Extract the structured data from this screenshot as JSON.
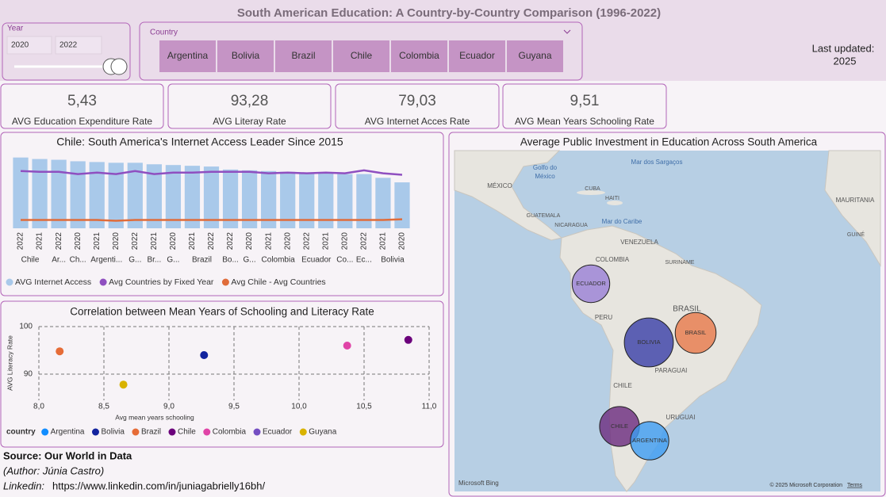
{
  "title": "South American Education: A Country-by-Country Comparison (1996-2022)",
  "year_slicer": {
    "label": "Year",
    "from": "2020",
    "to": "2022"
  },
  "country_slicer": {
    "label": "Country",
    "options": [
      "Argentina",
      "Bolivia",
      "Brazil",
      "Chile",
      "Colombia",
      "Ecuador",
      "Guyana"
    ]
  },
  "last_updated": {
    "label": "Last updated:",
    "value": "2025"
  },
  "kpis": [
    {
      "value": "5,43",
      "label": "AVG Education Expenditure Rate"
    },
    {
      "value": "93,28",
      "label": "AVG Literay Rate"
    },
    {
      "value": "79,03",
      "label": "AVG Internet Acces Rate"
    },
    {
      "value": "9,51",
      "label": "AVG Mean Years Schooling Rate"
    }
  ],
  "footer": {
    "source": "Source: Our World in Data",
    "author": "(Author: Júnia Castro)",
    "linkedin_label": "Linkedin:",
    "linkedin_url": "https://www.linkedin.com/in/juniagabrielly16bh/"
  },
  "map_labels": [
    "Golfo do",
    "México",
    "Mar dos Sargaços",
    "MÉXICO",
    "CUBA",
    "HAITI",
    "Mar do Caribe",
    "GUATEMALA",
    "NICARAGUA",
    "VENEZUELA",
    "COLOMBIA",
    "SURINAME",
    "PERU",
    "BRASIL",
    "PARAGUAI",
    "CHILE",
    "URUGUAI",
    "MAURITANIA",
    "GUINÉ",
    "Microsoft Bing",
    "© 2025 Microsoft Corporation",
    "Terms"
  ],
  "chart_data": [
    {
      "type": "bar_line",
      "title": "Chile: South America's Internet Access Leader Since 2015",
      "categories": [
        "2022",
        "2021",
        "2022",
        "2020",
        "2021",
        "2020",
        "2022",
        "2021",
        "2020",
        "2021",
        "2022",
        "2022",
        "2020",
        "2021",
        "2020",
        "2022",
        "2021",
        "2020",
        "2022",
        "2021",
        "2020"
      ],
      "category_groups": [
        "Chile",
        null,
        "Ar...",
        "Ch...",
        "Argenti...",
        null,
        "G...",
        "Br...",
        "G...",
        "Brazil",
        null,
        "Bo...",
        "G...",
        "Colombia",
        null,
        "Ecuador",
        null,
        "Co...",
        "Ec...",
        "Bolivia",
        null
      ],
      "ylim": [
        0,
        100
      ],
      "series": [
        {
          "name": "AVG Internet Access",
          "kind": "bar",
          "color": "#a9c9ea",
          "values": [
            94,
            92,
            91,
            89,
            88,
            87,
            87,
            85,
            84,
            83,
            82,
            78,
            77,
            76,
            75,
            74,
            74,
            72,
            72,
            67,
            61
          ]
        },
        {
          "name": "Avg Countries by Fixed Year",
          "kind": "line",
          "color": "#8f4fc0",
          "values": [
            76,
            75,
            75,
            72,
            74,
            72,
            76,
            72,
            74,
            74,
            75,
            75,
            75,
            73,
            74,
            73,
            74,
            73,
            77,
            73,
            71
          ]
        },
        {
          "name": "Avg Chile - Avg Countries",
          "kind": "line",
          "color": "#e06c3a",
          "values": [
            11,
            11,
            11,
            11,
            11,
            10,
            11,
            11,
            11,
            11,
            11,
            11,
            11,
            11,
            11,
            11,
            11,
            11,
            11,
            11,
            12
          ]
        }
      ]
    },
    {
      "type": "scatter",
      "title": "Correlation between Mean Years of Schooling and Literacy Rate",
      "x_label": "Avg mean years schooling",
      "y_label": "AVG Literacy Rate",
      "legend_title": "country",
      "xlim": [
        8,
        11
      ],
      "ylim": [
        84.5,
        100
      ],
      "xticks": [
        {
          "value": 8,
          "label": "8,0"
        },
        {
          "value": 8.5,
          "label": "8,5"
        },
        {
          "value": 9,
          "label": "9,0"
        },
        {
          "value": 9.5,
          "label": "9,5"
        },
        {
          "value": 10,
          "label": "10,0"
        },
        {
          "value": 10.5,
          "label": "10,5"
        },
        {
          "value": 11,
          "label": "11,0"
        }
      ],
      "yticks": [
        90,
        100
      ],
      "grid": true,
      "series": [
        {
          "name": "Argentina",
          "color": "#118dff",
          "x": [],
          "y": []
        },
        {
          "name": "Bolivia",
          "color": "#12239e",
          "x": [
            9.27
          ],
          "y": [
            94
          ]
        },
        {
          "name": "Brazil",
          "color": "#e66c37",
          "x": [
            8.16
          ],
          "y": [
            94.8
          ]
        },
        {
          "name": "Chile",
          "color": "#6b007b",
          "x": [
            10.84
          ],
          "y": [
            97.2
          ]
        },
        {
          "name": "Colombia",
          "color": "#e044a7",
          "x": [
            10.37
          ],
          "y": [
            96
          ]
        },
        {
          "name": "Ecuador",
          "color": "#744ec2",
          "x": [],
          "y": []
        },
        {
          "name": "Guyana",
          "color": "#d9b300",
          "x": [
            8.65
          ],
          "y": [
            87.8
          ]
        }
      ]
    },
    {
      "type": "bubble_map",
      "title": "Average Public Investment in Education Across South America",
      "categories": [
        "ECUADOR",
        "BOLIVIA",
        "BRASIL",
        "CHILE",
        "ARGENTINA"
      ],
      "values": [
        5.0,
        8.5,
        5.9,
        5.6,
        5.2
      ],
      "colors": [
        "#9a7fd6",
        "#3a3fa8",
        "#e8794a",
        "#6b2a7e",
        "#3d9cf2"
      ]
    }
  ]
}
